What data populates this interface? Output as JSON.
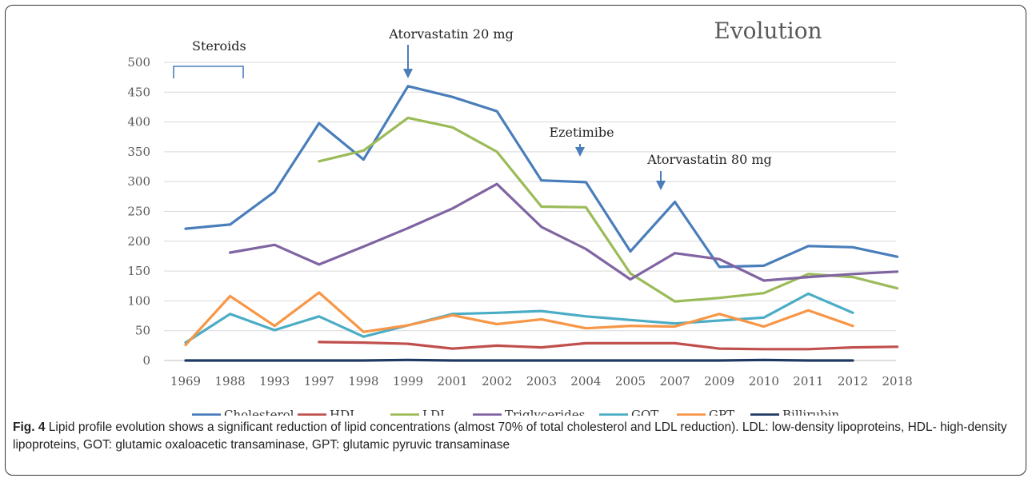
{
  "chart_data": {
    "type": "line",
    "title": "Evolution",
    "categories": [
      "1969",
      "1988",
      "1993",
      "1997",
      "1998",
      "1999",
      "2001",
      "2002",
      "2003",
      "2004",
      "2005",
      "2007",
      "2009",
      "2010",
      "2011",
      "2012",
      "2018"
    ],
    "ylim": [
      0,
      500
    ],
    "yticks": [
      0,
      50,
      100,
      150,
      200,
      250,
      300,
      350,
      400,
      450,
      500
    ],
    "grid": true,
    "legend_position": "bottom",
    "series": [
      {
        "name": "Cholesterol",
        "color": "#4A7EBB",
        "values": [
          221,
          228,
          283,
          398,
          337,
          460,
          442,
          418,
          302,
          299,
          183,
          266,
          157,
          159,
          192,
          190,
          174
        ]
      },
      {
        "name": "HDL",
        "color": "#C0504D",
        "values": [
          null,
          null,
          null,
          31,
          30,
          28,
          20,
          25,
          22,
          29,
          29,
          29,
          20,
          19,
          19,
          22,
          23
        ]
      },
      {
        "name": "LDL",
        "color": "#9BBB59",
        "values": [
          null,
          null,
          null,
          334,
          352,
          407,
          391,
          350,
          258,
          257,
          146,
          99,
          105,
          113,
          145,
          140,
          121
        ]
      },
      {
        "name": "Triglycerides",
        "color": "#8064A2",
        "values": [
          null,
          181,
          194,
          161,
          191,
          222,
          255,
          296,
          224,
          187,
          136,
          180,
          170,
          134,
          140,
          145,
          149
        ]
      },
      {
        "name": "GOT",
        "color": "#4BACC6",
        "values": [
          30,
          78,
          51,
          74,
          40,
          59,
          78,
          80,
          83,
          74,
          68,
          62,
          67,
          72,
          112,
          80,
          null
        ]
      },
      {
        "name": "GPT",
        "color": "#F79646",
        "values": [
          26,
          108,
          58,
          114,
          48,
          59,
          76,
          61,
          69,
          54,
          58,
          57,
          78,
          57,
          84,
          58,
          null
        ]
      },
      {
        "name": "Billirubin",
        "color": "#1F3864",
        "values": [
          0,
          0,
          0,
          0,
          0,
          1,
          0,
          0,
          0,
          0,
          0,
          0,
          0,
          1,
          0,
          0,
          null
        ]
      }
    ],
    "annotations": [
      {
        "label": "Steroids",
        "type": "bracket",
        "from_category": "1969",
        "to_category": "1988"
      },
      {
        "label": "Atorvastatin 20 mg",
        "type": "arrow",
        "category": "1999"
      },
      {
        "label": "Ezetimibe",
        "type": "arrow",
        "category": "2004"
      },
      {
        "label": "Atorvastatin 80 mg",
        "type": "arrow",
        "category": "2007"
      }
    ]
  },
  "caption": {
    "label": "Fig. 4",
    "text": " Lipid profile evolution shows a significant reduction of lipid concentrations (almost 70% of total cholesterol and LDL reduction). LDL: low-density lipoproteins, HDL- high-density lipoproteins, GOT: glutamic oxaloacetic transaminase, GPT: glutamic pyruvic transaminase"
  }
}
